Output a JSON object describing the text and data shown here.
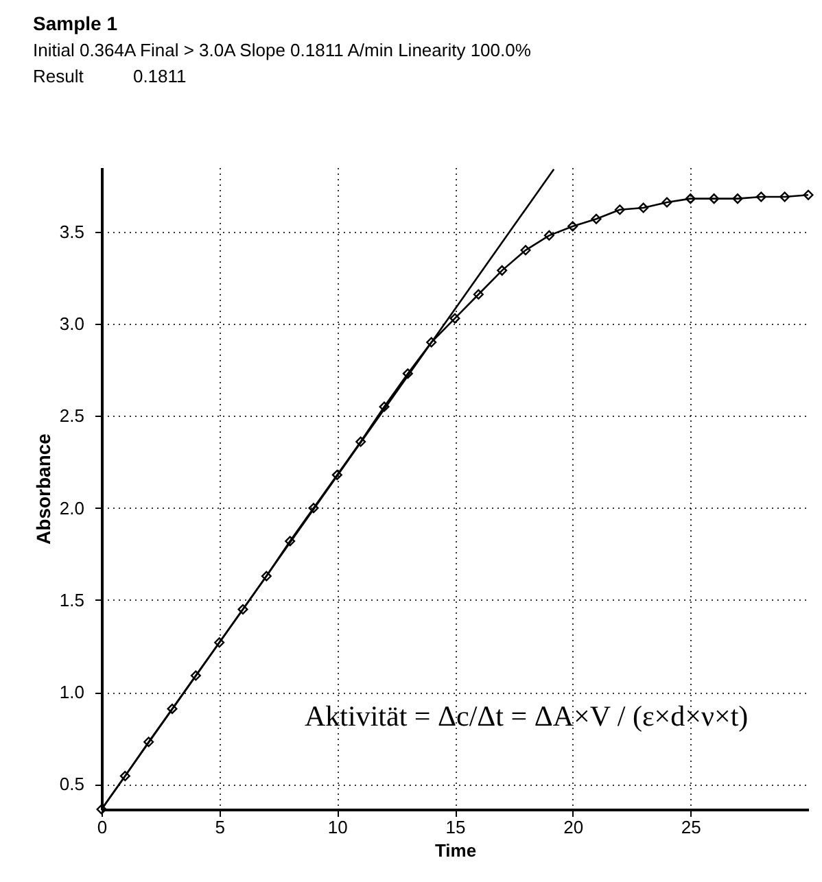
{
  "chart_data": {
    "type": "line",
    "title": "Sample 1",
    "subtitle": "Initial  0.364A  Final >  3.0A  Slope  0.1811 A/min  Linearity 100.0%",
    "xlabel": "Time",
    "ylabel": "Absorbance",
    "annotations": [
      "Result          0.1811",
      "Aktivität = Δc/Δt = ΔA×V / (ε×d×ν×t)"
    ],
    "x": [
      0,
      1,
      2,
      3,
      4,
      5,
      6,
      7,
      8,
      9,
      10,
      11,
      12,
      13,
      14,
      15,
      16,
      17,
      18,
      19,
      20,
      21,
      22,
      23,
      24,
      25,
      26,
      27,
      28,
      29,
      30
    ],
    "series": [
      {
        "color": "#000000",
        "marker": "diamond",
        "values": [
          0.364,
          0.545,
          0.73,
          0.91,
          1.09,
          1.27,
          1.45,
          1.63,
          1.82,
          2.0,
          2.18,
          2.36,
          2.55,
          2.73,
          2.9,
          3.03,
          3.16,
          3.29,
          3.4,
          3.48,
          3.53,
          3.57,
          3.62,
          3.63,
          3.66,
          3.68,
          3.68,
          3.68,
          3.69,
          3.69,
          3.7
        ]
      },
      {
        "color": "#000000",
        "type": "line",
        "marker": "none",
        "x": [
          0,
          19.2
        ],
        "values": [
          0.364,
          3.84
        ]
      }
    ],
    "xlim": [
      0,
      30
    ],
    "xticks": [
      0,
      5,
      10,
      15,
      20,
      25
    ],
    "ylim": [
      0.364,
      3.85
    ],
    "yticks": [
      {
        "value": 0.5,
        "label": "0.5"
      },
      {
        "value": 1,
        "label": "1.0"
      },
      {
        "value": 1.5,
        "label": "1.5"
      },
      {
        "value": 2,
        "label": "2.0"
      },
      {
        "value": 2.5,
        "label": "2.5"
      },
      {
        "value": 3,
        "label": "3.0"
      },
      {
        "value": 3.5,
        "label": "3.5"
      }
    ],
    "grid": true
  }
}
